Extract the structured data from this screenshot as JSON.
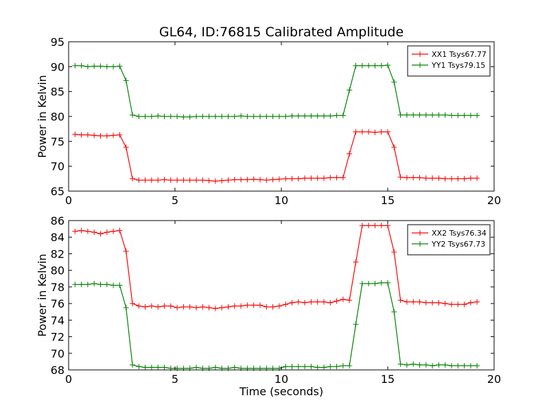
{
  "chart_data": [
    {
      "type": "line",
      "title": "GL64, ID:76815 Calibrated Amplitude",
      "xlabel": "",
      "ylabel": "Power in Kelvin",
      "xlim": [
        0,
        20
      ],
      "ylim": [
        65,
        95
      ],
      "xticks": [
        0,
        5,
        10,
        15,
        20
      ],
      "yticks": [
        65,
        70,
        75,
        80,
        85,
        90,
        95
      ],
      "legend": "top-right",
      "x": [
        0.3,
        0.6,
        0.9,
        1.2,
        1.5,
        1.8,
        2.1,
        2.4,
        2.7,
        3.0,
        3.3,
        3.6,
        3.9,
        4.2,
        4.5,
        4.8,
        5.1,
        5.4,
        5.7,
        6.0,
        6.3,
        6.6,
        6.9,
        7.2,
        7.5,
        7.8,
        8.1,
        8.4,
        8.7,
        9.0,
        9.3,
        9.6,
        9.9,
        10.2,
        10.5,
        10.8,
        11.1,
        11.4,
        11.7,
        12.0,
        12.3,
        12.6,
        12.9,
        13.2,
        13.5,
        13.8,
        14.1,
        14.4,
        14.7,
        15.0,
        15.3,
        15.6,
        15.9,
        16.2,
        16.5,
        16.8,
        17.1,
        17.4,
        17.7,
        18.0,
        18.3,
        18.6,
        18.9,
        19.2
      ],
      "series": [
        {
          "name": "XX1 Tsys67.77",
          "color": "#ff0000",
          "values": [
            76.4,
            76.3,
            76.3,
            76.2,
            76.1,
            76.1,
            76.2,
            76.3,
            73.8,
            67.5,
            67.2,
            67.2,
            67.2,
            67.2,
            67.3,
            67.2,
            67.2,
            67.2,
            67.2,
            67.2,
            67.2,
            67.1,
            67.0,
            67.1,
            67.2,
            67.3,
            67.3,
            67.3,
            67.4,
            67.3,
            67.2,
            67.3,
            67.4,
            67.5,
            67.5,
            67.5,
            67.6,
            67.6,
            67.6,
            67.6,
            67.7,
            67.7,
            67.7,
            72.5,
            76.9,
            76.9,
            76.9,
            76.8,
            76.9,
            76.9,
            73.8,
            67.8,
            67.7,
            67.7,
            67.7,
            67.6,
            67.6,
            67.6,
            67.5,
            67.5,
            67.5,
            67.5,
            67.6,
            67.6
          ]
        },
        {
          "name": "YY1 Tsys79.15",
          "color": "#008000",
          "values": [
            90.2,
            90.2,
            90.0,
            90.1,
            90.1,
            90.0,
            90.0,
            90.1,
            87.2,
            80.3,
            80.0,
            80.0,
            80.0,
            80.1,
            80.0,
            80.0,
            80.0,
            79.9,
            79.9,
            80.0,
            80.0,
            80.0,
            80.0,
            80.0,
            80.0,
            80.0,
            80.1,
            80.0,
            80.0,
            80.0,
            80.0,
            80.0,
            80.0,
            80.0,
            80.1,
            80.1,
            80.1,
            80.1,
            80.1,
            80.1,
            80.1,
            80.2,
            80.2,
            85.3,
            90.2,
            90.2,
            90.2,
            90.2,
            90.2,
            90.3,
            86.9,
            80.3,
            80.3,
            80.3,
            80.3,
            80.3,
            80.3,
            80.3,
            80.3,
            80.2,
            80.2,
            80.2,
            80.2,
            80.2
          ]
        }
      ]
    },
    {
      "type": "line",
      "title": "",
      "xlabel": "Time (seconds)",
      "ylabel": "Power in Kelvin",
      "xlim": [
        0,
        20
      ],
      "ylim": [
        68,
        86
      ],
      "xticks": [
        0,
        5,
        10,
        15,
        20
      ],
      "yticks": [
        68,
        70,
        72,
        74,
        76,
        78,
        80,
        82,
        84,
        86
      ],
      "legend": "top-right",
      "x": [
        0.3,
        0.6,
        0.9,
        1.2,
        1.5,
        1.8,
        2.1,
        2.4,
        2.7,
        3.0,
        3.3,
        3.6,
        3.9,
        4.2,
        4.5,
        4.8,
        5.1,
        5.4,
        5.7,
        6.0,
        6.3,
        6.6,
        6.9,
        7.2,
        7.5,
        7.8,
        8.1,
        8.4,
        8.7,
        9.0,
        9.3,
        9.6,
        9.9,
        10.2,
        10.5,
        10.8,
        11.1,
        11.4,
        11.7,
        12.0,
        12.3,
        12.6,
        12.9,
        13.2,
        13.5,
        13.8,
        14.1,
        14.4,
        14.7,
        15.0,
        15.3,
        15.6,
        15.9,
        16.2,
        16.5,
        16.8,
        17.1,
        17.4,
        17.7,
        18.0,
        18.3,
        18.6,
        18.9,
        19.2
      ],
      "series": [
        {
          "name": "XX2 Tsys76.34",
          "color": "#ff0000",
          "values": [
            84.7,
            84.8,
            84.7,
            84.6,
            84.4,
            84.6,
            84.7,
            84.8,
            82.3,
            76.0,
            75.7,
            75.6,
            75.7,
            75.6,
            75.7,
            75.7,
            75.5,
            75.6,
            75.6,
            75.5,
            75.6,
            75.5,
            75.4,
            75.5,
            75.6,
            75.7,
            75.7,
            75.8,
            75.8,
            75.8,
            75.6,
            75.6,
            75.7,
            75.9,
            76.1,
            76.2,
            76.1,
            76.2,
            76.2,
            76.2,
            76.1,
            76.3,
            76.5,
            76.4,
            81.0,
            85.4,
            85.4,
            85.4,
            85.4,
            85.4,
            82.2,
            76.4,
            76.2,
            76.2,
            76.2,
            76.1,
            76.1,
            76.1,
            76.0,
            75.9,
            75.9,
            75.9,
            76.1,
            76.2
          ],
          "_note": ""
        },
        {
          "name": "YY2 Tsys67.73",
          "color": "#008000",
          "values": [
            78.3,
            78.3,
            78.3,
            78.4,
            78.3,
            78.3,
            78.2,
            78.2,
            75.5,
            68.6,
            68.4,
            68.3,
            68.3,
            68.3,
            68.3,
            68.2,
            68.2,
            68.2,
            68.2,
            68.3,
            68.2,
            68.2,
            68.3,
            68.2,
            68.2,
            68.3,
            68.2,
            68.2,
            68.2,
            68.2,
            68.2,
            68.2,
            68.2,
            68.4,
            68.4,
            68.4,
            68.4,
            68.4,
            68.3,
            68.3,
            68.4,
            68.4,
            68.5,
            68.5,
            73.5,
            78.4,
            78.4,
            78.4,
            78.5,
            78.5,
            75.0,
            68.7,
            68.6,
            68.7,
            68.6,
            68.6,
            68.5,
            68.6,
            68.6,
            68.5,
            68.5,
            68.5,
            68.5,
            68.5
          ]
        }
      ]
    }
  ]
}
